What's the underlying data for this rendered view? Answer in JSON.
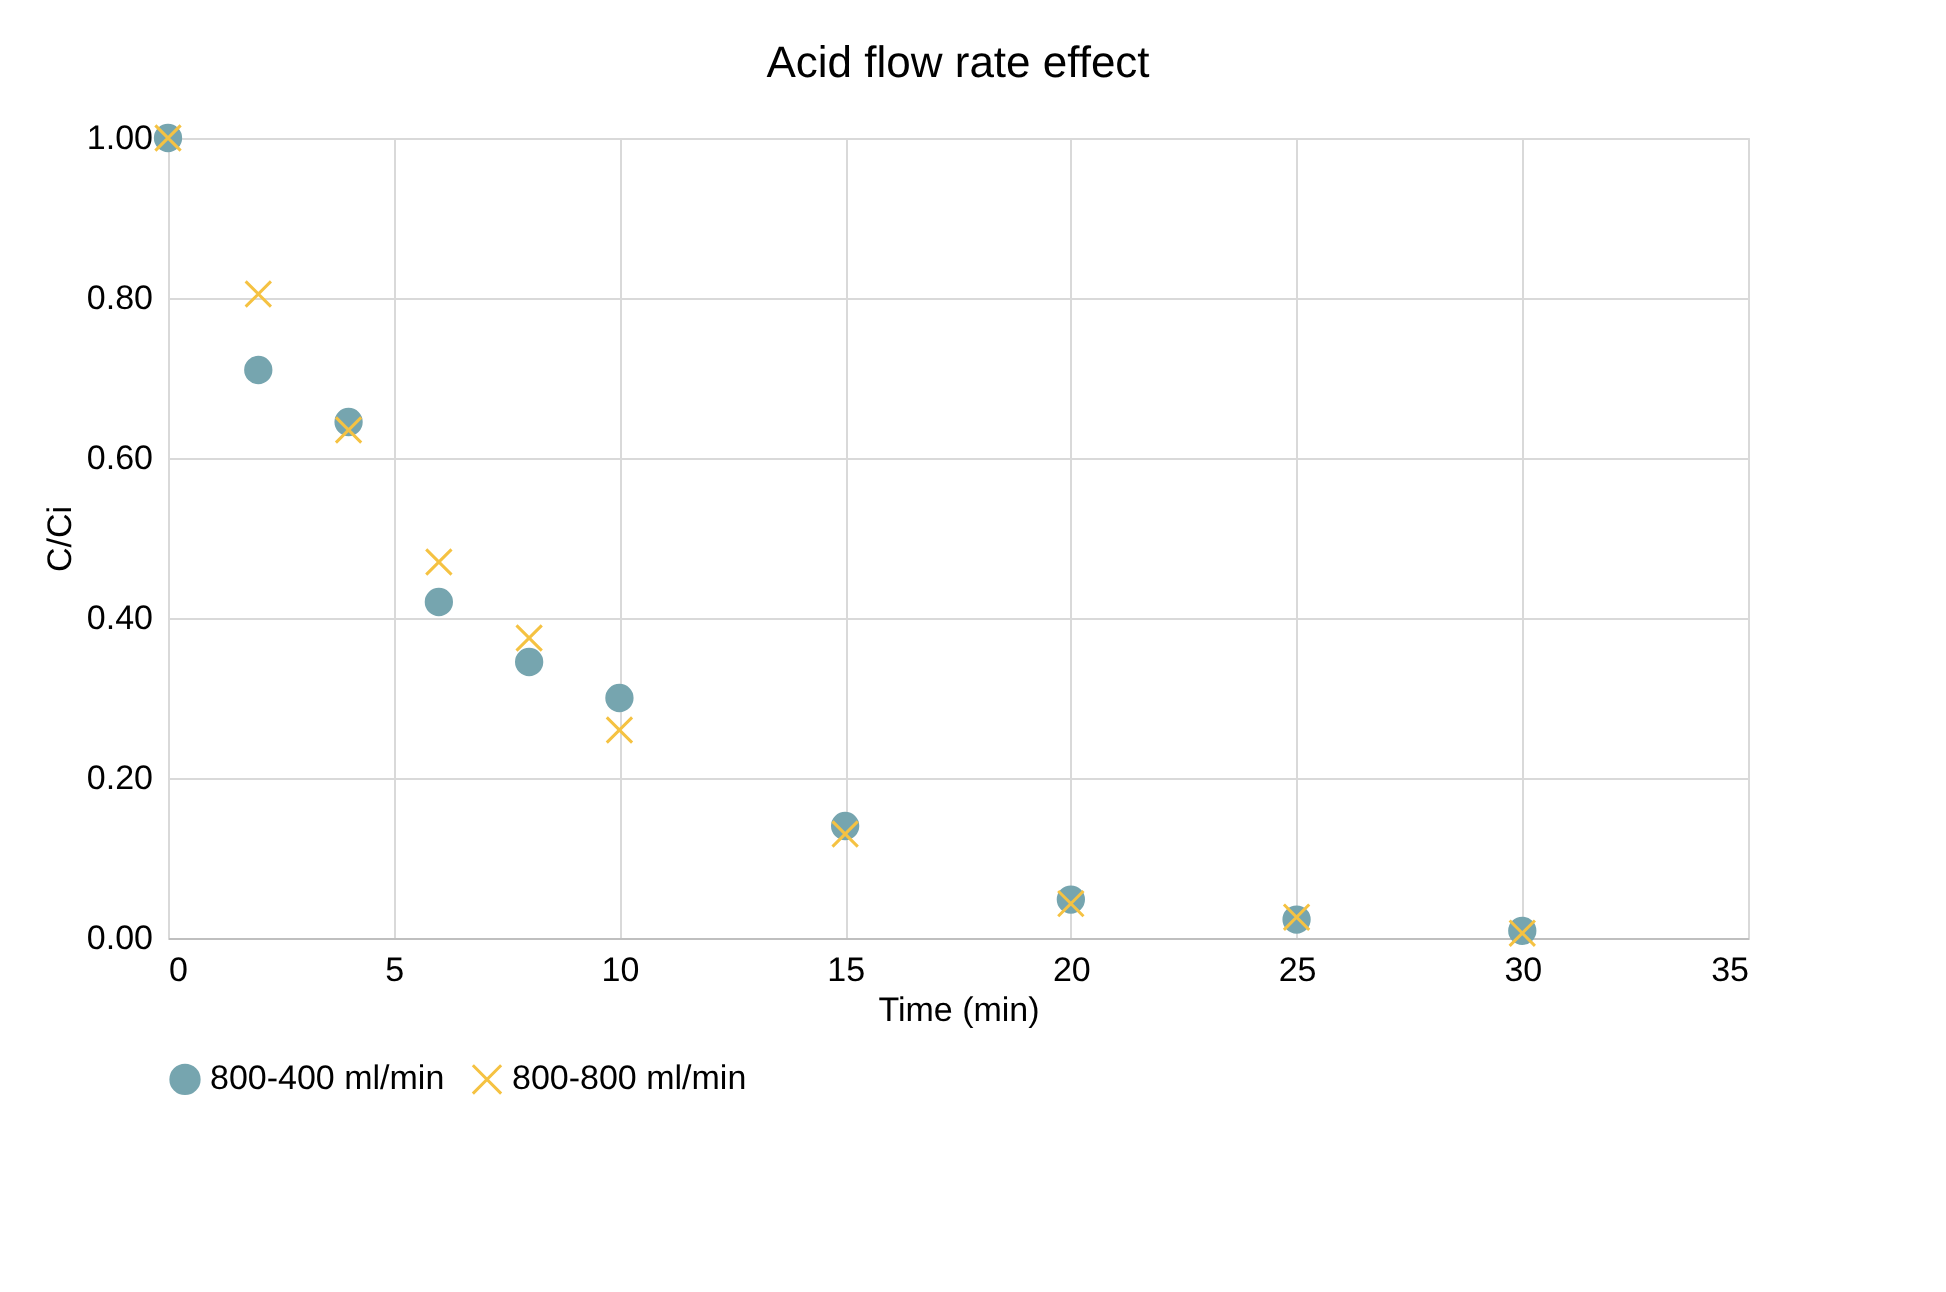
{
  "chart_data": {
    "type": "scatter",
    "title": "Acid flow rate effect",
    "xlabel": "Time (min)",
    "ylabel": "C/Ci",
    "x": [
      0,
      2,
      4,
      6,
      8,
      10,
      15,
      20,
      25,
      30
    ],
    "series": [
      {
        "name": "800-400 ml/min",
        "color": "#76a5af",
        "marker": "circle",
        "values": [
          1.0,
          0.71,
          0.645,
          0.42,
          0.345,
          0.3,
          0.14,
          0.048,
          0.023,
          0.009
        ]
      },
      {
        "name": "800-800 ml/min",
        "color": "#f5c242",
        "marker": "cross",
        "values": [
          1.0,
          0.805,
          0.635,
          0.47,
          0.375,
          0.26,
          0.13,
          0.043,
          0.026,
          0.006
        ]
      }
    ],
    "xlim": [
      0,
      35
    ],
    "xticks": [
      0,
      5,
      10,
      15,
      20,
      25,
      30,
      35
    ],
    "ylim": [
      0,
      1
    ],
    "yticks": [
      {
        "value": 0,
        "label": "0.00"
      },
      {
        "value": 0.2,
        "label": "0.20"
      },
      {
        "value": 0.4,
        "label": "0.40"
      },
      {
        "value": 0.6,
        "label": "0.60"
      },
      {
        "value": 0.8,
        "label": "0.80"
      },
      {
        "value": 1,
        "label": "1.00"
      }
    ],
    "grid": true,
    "legend": "bottom"
  }
}
